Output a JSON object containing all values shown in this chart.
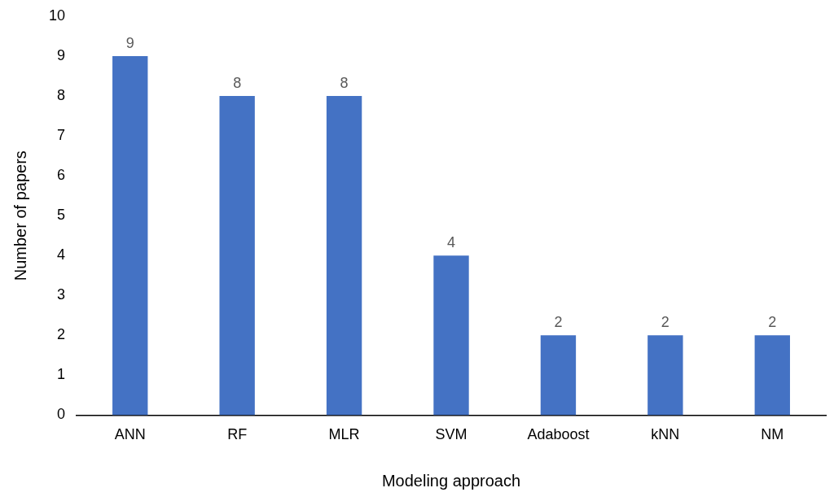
{
  "chart_data": {
    "type": "bar",
    "xlabel": "Modeling approach",
    "ylabel": "Number of papers",
    "categories": [
      "ANN",
      "RF",
      "MLR",
      "SVM",
      "Adaboost",
      "kNN",
      "NM"
    ],
    "values": [
      9,
      8,
      8,
      4,
      2,
      2,
      2
    ],
    "color": "#4472c4",
    "ylim": [
      0,
      10
    ],
    "yticks": [
      0,
      1,
      2,
      3,
      4,
      5,
      6,
      7,
      8,
      9,
      10
    ],
    "grid": false,
    "legend": false,
    "data_labels": true
  }
}
